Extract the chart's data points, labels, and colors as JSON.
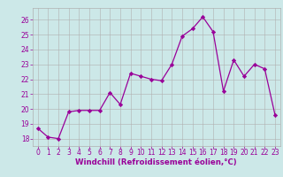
{
  "x": [
    0,
    1,
    2,
    3,
    4,
    5,
    6,
    7,
    8,
    9,
    10,
    11,
    12,
    13,
    14,
    15,
    16,
    17,
    18,
    19,
    20,
    21,
    22,
    23
  ],
  "y": [
    18.7,
    18.1,
    18.0,
    19.8,
    19.9,
    19.9,
    19.9,
    21.1,
    20.3,
    22.4,
    22.2,
    22.0,
    21.9,
    23.0,
    24.9,
    25.4,
    26.2,
    25.2,
    21.2,
    23.3,
    22.2,
    23.0,
    22.7,
    19.6
  ],
  "xlim": [
    -0.5,
    23.5
  ],
  "ylim": [
    17.5,
    26.8
  ],
  "yticks": [
    18,
    19,
    20,
    21,
    22,
    23,
    24,
    25,
    26
  ],
  "xticks": [
    0,
    1,
    2,
    3,
    4,
    5,
    6,
    7,
    8,
    9,
    10,
    11,
    12,
    13,
    14,
    15,
    16,
    17,
    18,
    19,
    20,
    21,
    22,
    23
  ],
  "xlabel": "Windchill (Refroidissement éolien,°C)",
  "line_color": "#990099",
  "marker": "D",
  "marker_size": 2.2,
  "bg_color": "#cce8e8",
  "grid_color": "#b0b0b0",
  "axis_label_color": "#990099",
  "tick_color": "#990099",
  "tick_fontsize": 5.5,
  "xlabel_fontsize": 6.2
}
